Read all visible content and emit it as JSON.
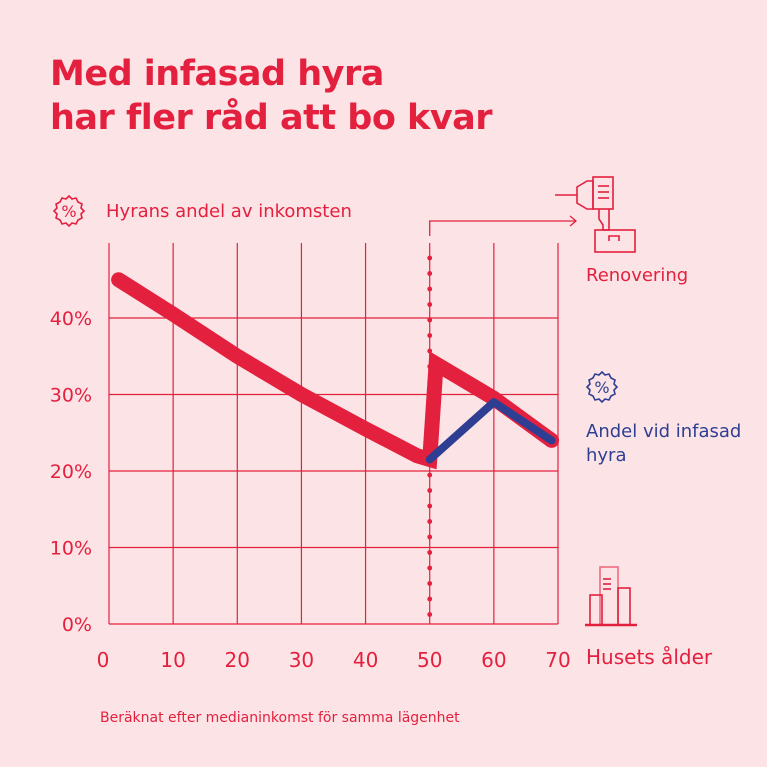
{
  "title_line1": "Med infasad hyra",
  "title_line2": "har fler råd att bo kvar",
  "footnote": "Beräknat efter medianinkomst för samma lägenhet",
  "colors": {
    "background": "#fce4e6",
    "red": "#e4203f",
    "blue": "#2e3f93"
  },
  "icons": [
    "percent-badge-icon",
    "drill-icon",
    "building-icon"
  ],
  "chart_data": {
    "type": "line",
    "ylabel": "Hyrans andel av inkomsten",
    "xlabel": "Husets ålder",
    "annotation": "Renovering",
    "xlim": [
      0,
      70
    ],
    "ylim": [
      0,
      45
    ],
    "xticks": [
      "0",
      "10",
      "20",
      "30",
      "40",
      "50",
      "60",
      "70"
    ],
    "yticks": [
      "0%",
      "10%",
      "20%",
      "30%",
      "40%"
    ],
    "grid": true,
    "renovation_at": 50,
    "series": [
      {
        "color": "#e4203f",
        "x": [
          1.5,
          10,
          20,
          30,
          40,
          48,
          50,
          51,
          60,
          69
        ],
        "y": [
          45,
          40.5,
          35,
          30,
          25.5,
          22,
          21.5,
          34,
          29.5,
          24
        ]
      },
      {
        "name": "Andel  vid infasad hyra",
        "color": "#2e3f93",
        "x": [
          50,
          60,
          69
        ],
        "y": [
          21.5,
          29,
          24
        ]
      }
    ]
  }
}
